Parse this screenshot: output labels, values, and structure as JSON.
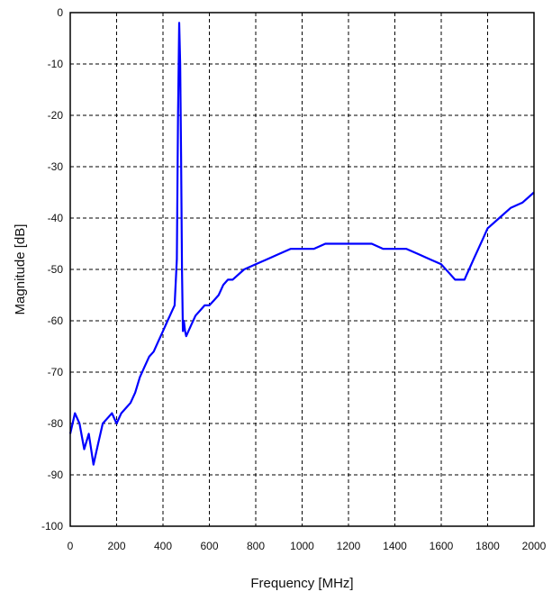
{
  "chart_data": {
    "type": "line",
    "title": "",
    "xlabel": "Frequency [MHz]",
    "ylabel": "Magnitude [dB]",
    "xlim": [
      0,
      2000
    ],
    "ylim": [
      -100,
      0
    ],
    "grid": true,
    "grid_style": "dashed",
    "x_ticks": [
      0,
      200,
      400,
      600,
      800,
      1000,
      1200,
      1400,
      1600,
      1800,
      2000
    ],
    "y_ticks": [
      0,
      -10,
      -20,
      -30,
      -40,
      -50,
      -60,
      -70,
      -80,
      -90,
      -100
    ],
    "series": [
      {
        "color": "#0000ff",
        "x": [
          0,
          20,
          40,
          60,
          80,
          100,
          120,
          140,
          160,
          180,
          200,
          220,
          240,
          260,
          280,
          300,
          320,
          340,
          360,
          380,
          400,
          420,
          430,
          440,
          450,
          460,
          465,
          470,
          474,
          478,
          482,
          486,
          490,
          495,
          500,
          510,
          520,
          540,
          560,
          580,
          600,
          620,
          640,
          660,
          680,
          700,
          750,
          800,
          850,
          900,
          950,
          1000,
          1050,
          1100,
          1150,
          1200,
          1250,
          1300,
          1350,
          1400,
          1450,
          1500,
          1550,
          1600,
          1640,
          1660,
          1680,
          1700,
          1710,
          1720,
          1740,
          1760,
          1780,
          1800,
          1850,
          1900,
          1950,
          2000
        ],
        "y": [
          -82,
          -78,
          -80,
          -85,
          -82,
          -88,
          -84,
          -80,
          -79,
          -78,
          -80,
          -78,
          -77,
          -76,
          -74,
          -71,
          -69,
          -67,
          -66,
          -64,
          -62,
          -60,
          -59,
          -58,
          -57,
          -48,
          -20,
          -2,
          -10,
          -28,
          -50,
          -62,
          -60,
          -62,
          -63,
          -62,
          -61,
          -59,
          -58,
          -57,
          -57,
          -56,
          -55,
          -53,
          -52,
          -52,
          -50,
          -49,
          -48,
          -47,
          -46,
          -46,
          -46,
          -45,
          -45,
          -45,
          -45,
          -45,
          -46,
          -46,
          -46,
          -47,
          -48,
          -49,
          -51,
          -52,
          -52,
          -52,
          -51,
          -50,
          -48,
          -46,
          -44,
          -42,
          -40,
          -38,
          -37,
          -35
        ]
      }
    ]
  }
}
